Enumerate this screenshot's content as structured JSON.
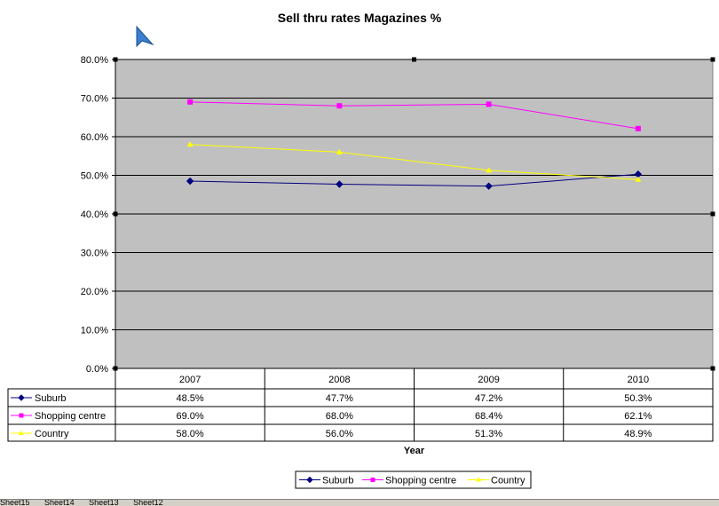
{
  "chart_data": {
    "type": "line",
    "title": "Sell thru rates Magazines %",
    "xlabel": "Year",
    "ylabel": "",
    "categories": [
      "2007",
      "2008",
      "2009",
      "2010"
    ],
    "ylim": [
      0,
      80
    ],
    "yticks": [
      "0.0%",
      "10.0%",
      "20.0%",
      "30.0%",
      "40.0%",
      "50.0%",
      "60.0%",
      "70.0%",
      "80.0%"
    ],
    "ytick_values": [
      0,
      10,
      20,
      30,
      40,
      50,
      60,
      70,
      80
    ],
    "grid": true,
    "legend": "bottom",
    "series": [
      {
        "name": "Suburb",
        "color": "#000080",
        "marker": "diamond",
        "values": [
          48.5,
          47.7,
          47.2,
          50.3
        ],
        "labels": [
          "48.5%",
          "47.7%",
          "47.2%",
          "50.3%"
        ]
      },
      {
        "name": "Shopping centre",
        "color": "#ff00ff",
        "marker": "square",
        "values": [
          69.0,
          68.0,
          68.4,
          62.1
        ],
        "labels": [
          "69.0%",
          "68.0%",
          "68.4%",
          "62.1%"
        ]
      },
      {
        "name": "Country",
        "color": "#ffff00",
        "marker": "triangle",
        "values": [
          58.0,
          56.0,
          51.3,
          48.9
        ],
        "labels": [
          "58.0%",
          "56.0%",
          "51.3%",
          "48.9%"
        ]
      }
    ],
    "plot_background": "#c0c0c0"
  },
  "tabs": [
    "Sheet15",
    "Sheet14",
    "Sheet13",
    "Sheet12"
  ]
}
